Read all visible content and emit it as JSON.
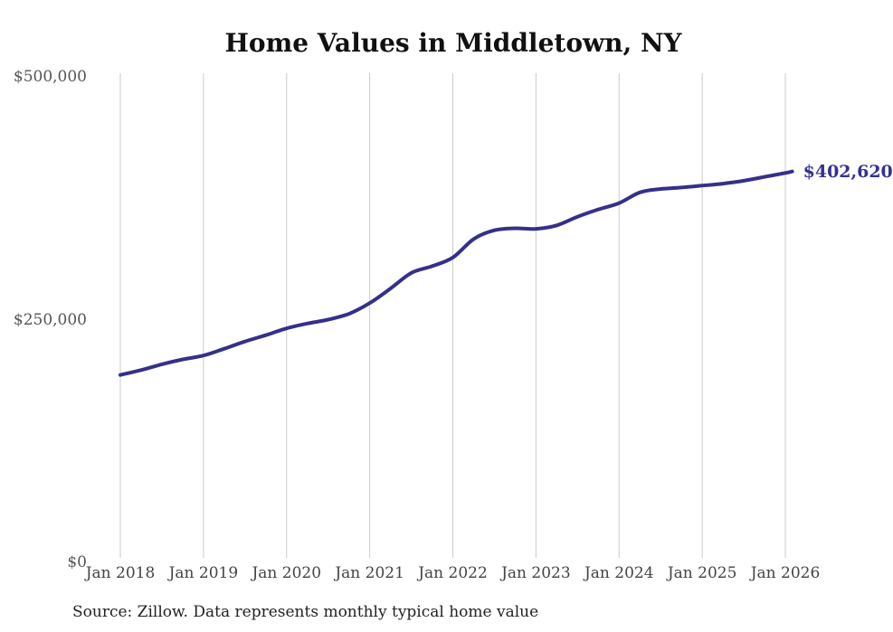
{
  "chart_data": {
    "type": "line",
    "title": "Home Values in Middletown, NY",
    "source": "Source: Zillow. Data represents monthly typical home value",
    "xlabel": "",
    "ylabel": "",
    "ylim": [
      0,
      500000
    ],
    "xlim": [
      2018.0,
      2026.083
    ],
    "grid": "vertical-only",
    "legend": "none",
    "line_color": "#34308a",
    "grid_color": "#cccccc",
    "annotation": {
      "text": "$402,620",
      "value": 402620
    },
    "series_name": "Typical home value (monthly)",
    "x": [
      2018.0,
      2018.25,
      2018.5,
      2018.75,
      2019.0,
      2019.25,
      2019.5,
      2019.75,
      2020.0,
      2020.25,
      2020.5,
      2020.75,
      2021.0,
      2021.25,
      2021.5,
      2021.75,
      2022.0,
      2022.25,
      2022.5,
      2022.75,
      2023.0,
      2023.25,
      2023.5,
      2023.75,
      2024.0,
      2024.25,
      2024.5,
      2024.75,
      2025.0,
      2025.25,
      2025.5,
      2025.75,
      2026.0,
      2026.083
    ],
    "values": [
      193000,
      198000,
      204000,
      209000,
      213000,
      220000,
      227500,
      234000,
      241000,
      246000,
      250000,
      256000,
      267000,
      282000,
      298000,
      305000,
      314000,
      333000,
      342000,
      344000,
      343500,
      347000,
      356000,
      363500,
      370000,
      381000,
      384500,
      386000,
      388000,
      390000,
      393000,
      397000,
      401000,
      402620
    ],
    "x_ticks": [
      {
        "value": 2018,
        "label": "Jan 2018"
      },
      {
        "value": 2019,
        "label": "Jan 2019"
      },
      {
        "value": 2020,
        "label": "Jan 2020"
      },
      {
        "value": 2021,
        "label": "Jan 2021"
      },
      {
        "value": 2022,
        "label": "Jan 2022"
      },
      {
        "value": 2023,
        "label": "Jan 2023"
      },
      {
        "value": 2024,
        "label": "Jan 2024"
      },
      {
        "value": 2025,
        "label": "Jan 2025"
      },
      {
        "value": 2026,
        "label": "Jan 2026"
      }
    ],
    "y_ticks": [
      {
        "value": 0,
        "label": "$0"
      },
      {
        "value": 250000,
        "label": "$250,000"
      },
      {
        "value": 500000,
        "label": "$500,000"
      }
    ]
  }
}
